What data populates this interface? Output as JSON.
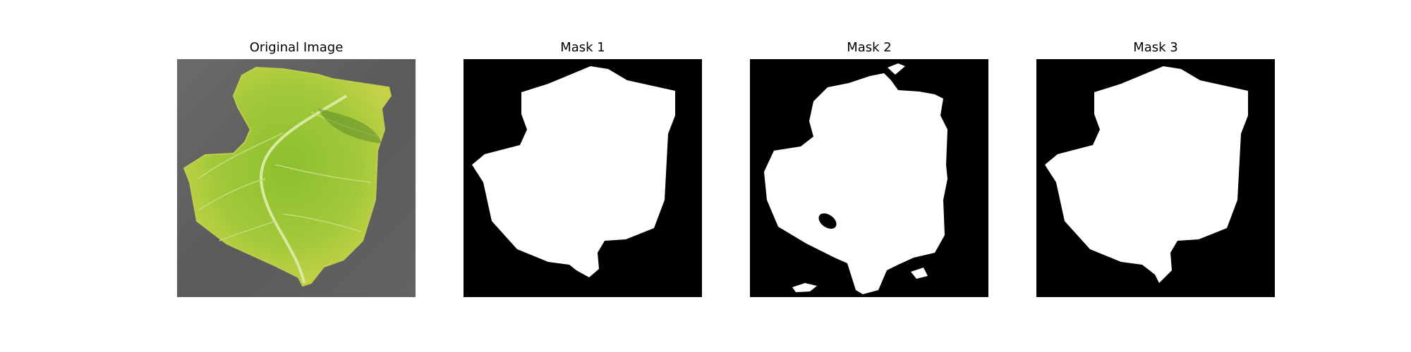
{
  "figure": {
    "panels": [
      {
        "title": "Original Image",
        "content": "leaf-photo"
      },
      {
        "title": "Mask 1",
        "content": "binary-mask"
      },
      {
        "title": "Mask 2",
        "content": "binary-mask"
      },
      {
        "title": "Mask 3",
        "content": "binary-mask"
      }
    ]
  },
  "colors": {
    "background": "#ffffff",
    "mask_foreground": "#ffffff",
    "mask_background": "#000000",
    "photo_surface": "#5f5f5f",
    "leaf_green": "#9bc43a",
    "leaf_yellow": "#c9d548",
    "leaf_vein": "#d9e9a0"
  }
}
